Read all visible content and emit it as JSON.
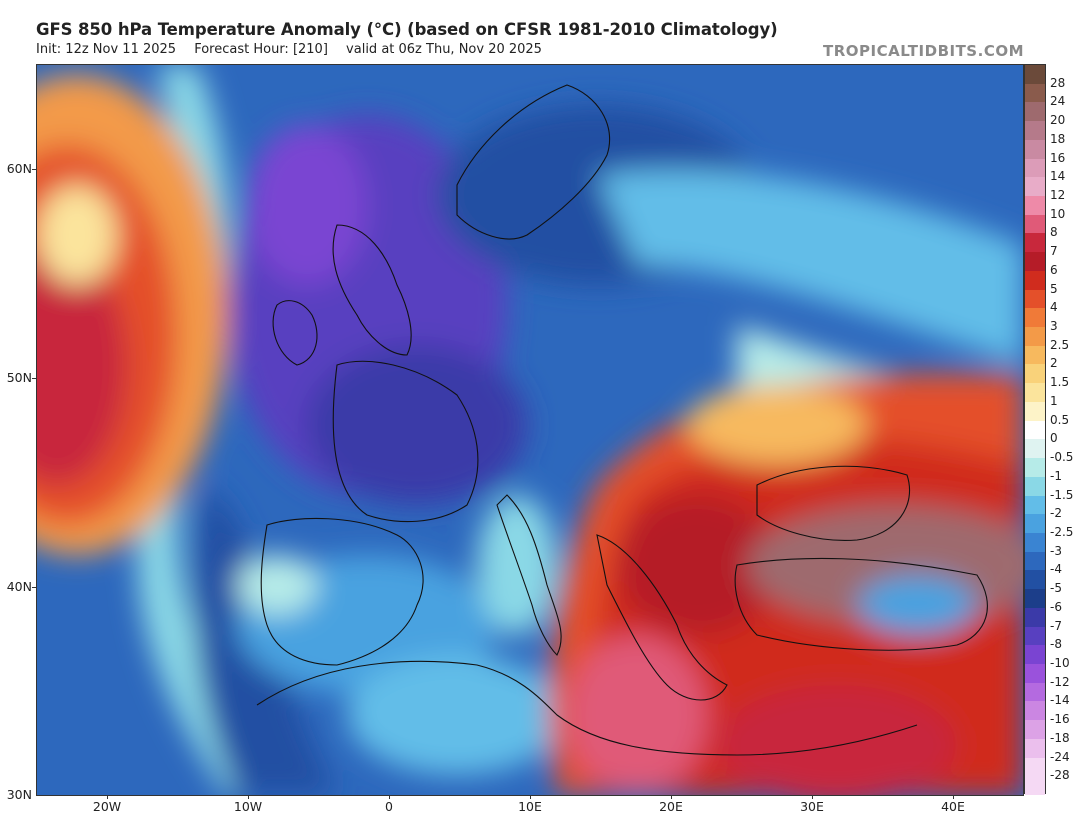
{
  "header": {
    "title": "GFS 850 hPa Temperature Anomaly (°C) (based on CFSR 1981-2010 Climatology)",
    "init": "Init: 12z Nov 11 2025",
    "forecast_hour": "Forecast Hour: [210]",
    "valid": "valid at 06z Thu, Nov 20 2025",
    "brand": "TROPICALTIDBITS.COM"
  },
  "map": {
    "lat_labels": [
      "60N",
      "50N",
      "40N",
      "30N"
    ],
    "lon_labels": [
      "20W",
      "10W",
      "0",
      "10E",
      "20E",
      "30E",
      "40E"
    ],
    "features": [
      {
        "name": "cold-anomaly-western-europe",
        "sign": "negative"
      },
      {
        "name": "warm-anomaly-balkans-turkey-north-africa",
        "sign": "positive"
      },
      {
        "name": "warm-anomaly-north-atlantic",
        "sign": "positive"
      }
    ]
  },
  "legend": {
    "labels": [
      "28",
      "24",
      "20",
      "18",
      "16",
      "14",
      "12",
      "10",
      "8",
      "7",
      "6",
      "5",
      "4",
      "3",
      "2.5",
      "2",
      "1.5",
      "1",
      "0.5",
      "0",
      "-0.5",
      "-1",
      "-1.5",
      "-2",
      "-2.5",
      "-3",
      "-4",
      "-5",
      "-6",
      "-7",
      "-8",
      "-10",
      "-12",
      "-14",
      "-16",
      "-18",
      "-24",
      "-28"
    ],
    "colors": [
      "#6b4a3a",
      "#8a5b4c",
      "#9e6a6e",
      "#b57a8a",
      "#c98aa2",
      "#dc9cb8",
      "#e8acc8",
      "#ee8aa8",
      "#e05a78",
      "#c8283c",
      "#b51c28",
      "#d02c1e",
      "#e4502a",
      "#f07a38",
      "#f39a48",
      "#f7b95e",
      "#f9d27a",
      "#fbe49c",
      "#fdf3c8",
      "#ffffff",
      "#dff3f1",
      "#b6ebe8",
      "#8ad8e6",
      "#62bde8",
      "#4aa2e0",
      "#3a84d2",
      "#2d68bd",
      "#2250a3",
      "#1c3e8a",
      "#3b3aa8",
      "#5840c0",
      "#7a44d2",
      "#9a52dc",
      "#b46ae0",
      "#cb86e2",
      "#dca2e6",
      "#ebbfed",
      "#f5d9f4"
    ]
  }
}
